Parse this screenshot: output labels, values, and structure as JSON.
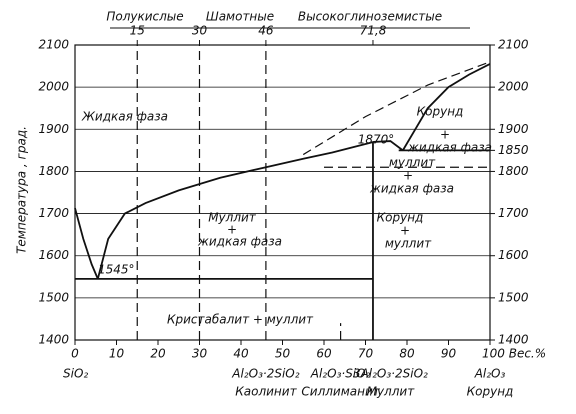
{
  "chart_data": {
    "type": "line",
    "y_label": "Температура , град.",
    "color": "#111111",
    "xlim": [
      0,
      100
    ],
    "ylim": [
      1400,
      2100
    ],
    "y2lim": [
      1400,
      2100
    ],
    "xticks": [
      0,
      10,
      20,
      30,
      40,
      50,
      60,
      70,
      80,
      90,
      {
        "value": 100,
        "label": "100 Вес.%"
      }
    ],
    "yticks": [
      1400,
      1500,
      1600,
      1700,
      1800,
      1900,
      2000,
      2100
    ],
    "y2ticks": [
      1400,
      1500,
      1600,
      1700,
      1800,
      1850,
      1900,
      2000,
      2100
    ],
    "top_ticks": [
      15,
      30,
      46,
      {
        "value": 71.8,
        "label": "71,8"
      }
    ],
    "top_groups": [
      "Полукислые",
      "Шамотные",
      "Высокоглиноземистые"
    ],
    "bottom_labels": [
      {
        "value": 0,
        "formula": "SiO₂"
      },
      {
        "value": 46,
        "formula": "Al₂O₃·2SiO₂",
        "mineral": "Каолинит"
      },
      {
        "value": 64,
        "formula": "Al₂O₃·SiO₂",
        "mineral": "Силлиманит"
      },
      {
        "value": 76,
        "formula": "3Al₂O₃·2SiO₂",
        "mineral": "Муллит"
      },
      {
        "value": 100,
        "formula": "Al₂O₃",
        "mineral": "Корунд"
      }
    ],
    "annotations": [
      "Жидкая фаза",
      "Корунд",
      "+",
      "жидкая фаза",
      "1870°",
      "муллит",
      "+",
      "жидкая фаза",
      "Муллит",
      "+",
      "жидкая фаза",
      "Корунд",
      "+",
      "муллит",
      "1545°",
      "Кристабалит + муллит"
    ],
    "series": [
      {
        "x": [
          0,
          2,
          4,
          5.5
        ],
        "values": [
          1713,
          1640,
          1580,
          1545
        ],
        "dash": false
      },
      {
        "x": [
          5.5,
          8,
          12,
          17,
          25,
          35,
          46,
          55,
          62,
          68,
          72,
          76,
          79
        ],
        "values": [
          1545,
          1640,
          1700,
          1725,
          1755,
          1785,
          1810,
          1830,
          1845,
          1860,
          1870,
          1872,
          1850
        ],
        "dash": false
      },
      {
        "x": [
          79,
          85,
          90,
          95,
          100
        ],
        "values": [
          1850,
          1950,
          2000,
          2030,
          2055
        ],
        "dash": false
      },
      {
        "x": [
          55,
          70,
          85,
          100
        ],
        "values": [
          1840,
          1930,
          2005,
          2060
        ],
        "dash": true
      },
      {
        "x": [
          0,
          71.8
        ],
        "values": [
          1545,
          1545
        ],
        "dash": false
      },
      {
        "x": [
          78,
          100
        ],
        "values": [
          1850,
          1850
        ],
        "dash": false
      },
      {
        "x": [
          60,
          100
        ],
        "values": [
          1810,
          1810
        ],
        "dash": true
      },
      {
        "x": [
          71.8,
          71.8
        ],
        "values": [
          1400,
          1870
        ],
        "dash": false
      },
      {
        "x": [
          15,
          15
        ],
        "values": [
          1400,
          2100
        ],
        "dash": true
      },
      {
        "x": [
          30,
          30
        ],
        "values": [
          1400,
          2100
        ],
        "dash": true
      },
      {
        "x": [
          46,
          46
        ],
        "values": [
          1400,
          2100
        ],
        "dash": true
      },
      {
        "x": [
          64,
          64
        ],
        "values": [
          1400,
          1440
        ],
        "dash": true
      }
    ]
  }
}
